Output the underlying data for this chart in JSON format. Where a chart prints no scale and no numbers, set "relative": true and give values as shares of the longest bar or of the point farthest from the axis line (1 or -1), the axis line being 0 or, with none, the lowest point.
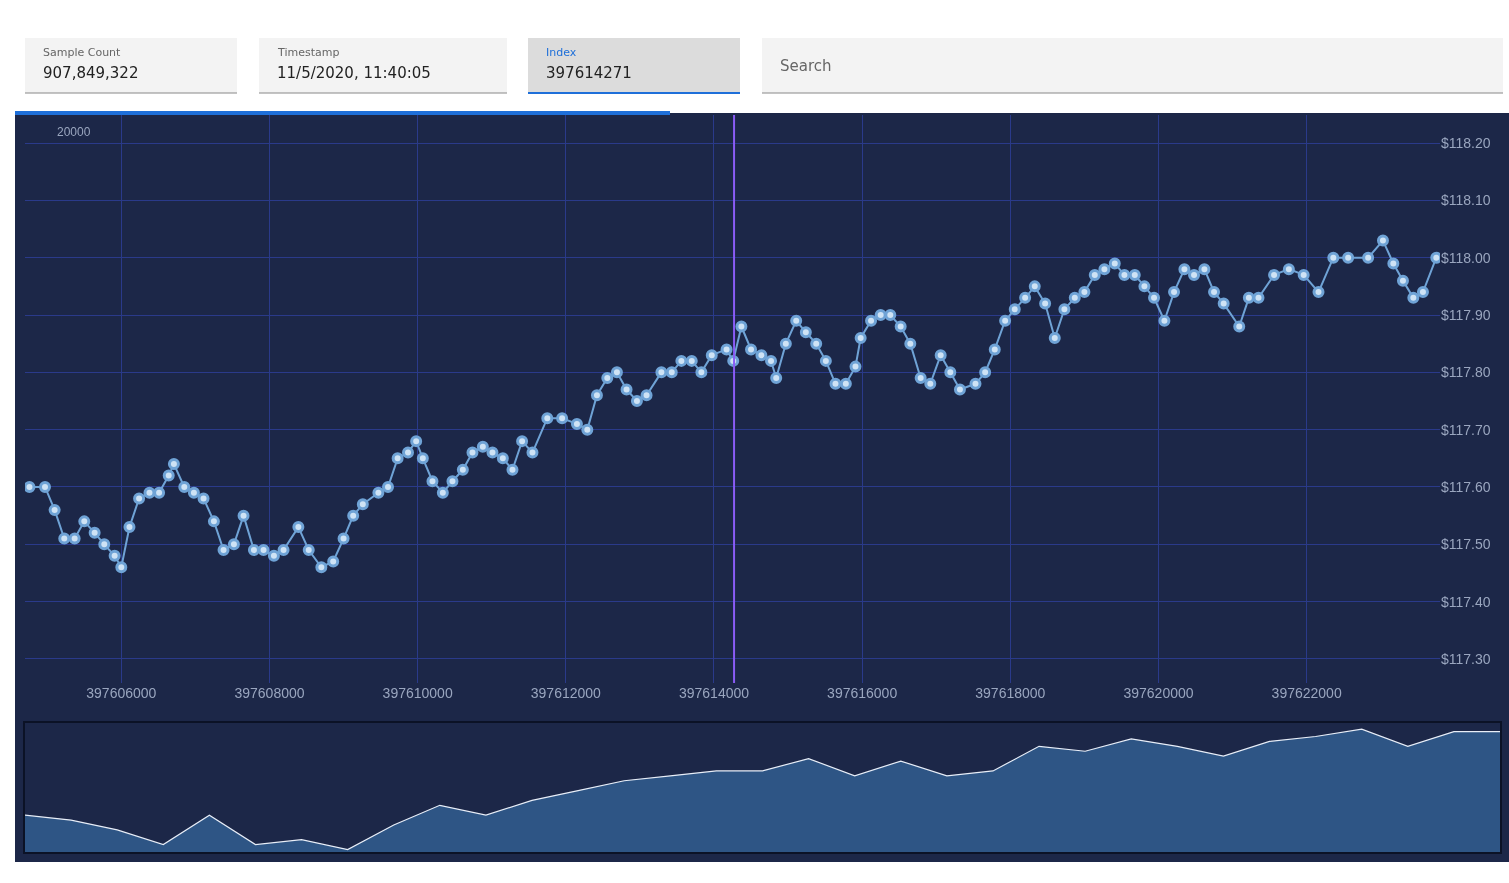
{
  "chart_data": [
    {
      "type": "line",
      "annotations": [
        "Sample Count",
        "907,849,322",
        "Timestamp",
        "11/5/2020, 11:40:05",
        "Index",
        "397614271",
        "Search",
        "20000"
      ],
      "x": [
        397604760,
        397604970,
        397605100,
        397605230,
        397605370,
        397605500,
        397605640,
        397605770,
        397605910,
        397606000,
        397606110,
        397606240,
        397606380,
        397606510,
        397606640,
        397606710,
        397606850,
        397606980,
        397607110,
        397607250,
        397607380,
        397607520,
        397607650,
        397607790,
        397607920,
        397608060,
        397608190,
        397608390,
        397608530,
        397608700,
        397608860,
        397609000,
        397609130,
        397609260,
        397609470,
        397609600,
        397609730,
        397609870,
        397609980,
        397610070,
        397610200,
        397610340,
        397610470,
        397610610,
        397610740,
        397610880,
        397611010,
        397611150,
        397611280,
        397611410,
        397611550,
        397611750,
        397611950,
        397612150,
        397612290,
        397612420,
        397612560,
        397612690,
        397612820,
        397612960,
        397613090,
        397613290,
        397613430,
        397613560,
        397613700,
        397613830,
        397613970,
        397614170,
        397614260,
        397614370,
        397614500,
        397614640,
        397614770,
        397614840,
        397614970,
        397615110,
        397615240,
        397615380,
        397615510,
        397615640,
        397615780,
        397615910,
        397615980,
        397616120,
        397616250,
        397616380,
        397616520,
        397616650,
        397616790,
        397616920,
        397617060,
        397617190,
        397617320,
        397617530,
        397617660,
        397617790,
        397617930,
        397618060,
        397618200,
        397618330,
        397618470,
        397618600,
        397618730,
        397618870,
        397619000,
        397619140,
        397619270,
        397619410,
        397619540,
        397619680,
        397619810,
        397619940,
        397620080,
        397620210,
        397620350,
        397620480,
        397620620,
        397620750,
        397620880,
        397621090,
        397621220,
        397621350,
        397621560,
        397621760,
        397621960,
        397622160,
        397622360,
        397622560,
        397622830,
        397623030,
        397623170,
        397623300,
        397623440,
        397623570,
        397623750
      ],
      "series": [
        {
          "color": "#6fa3d6",
          "values": [
            117.6,
            117.6,
            117.56,
            117.51,
            117.51,
            117.54,
            117.52,
            117.5,
            117.48,
            117.46,
            117.53,
            117.58,
            117.59,
            117.59,
            117.62,
            117.64,
            117.6,
            117.59,
            117.58,
            117.54,
            117.49,
            117.5,
            117.55,
            117.49,
            117.49,
            117.48,
            117.49,
            117.53,
            117.49,
            117.46,
            117.47,
            117.51,
            117.55,
            117.57,
            117.59,
            117.6,
            117.65,
            117.66,
            117.68,
            117.65,
            117.61,
            117.59,
            117.61,
            117.63,
            117.66,
            117.67,
            117.66,
            117.65,
            117.63,
            117.68,
            117.66,
            117.72,
            117.72,
            117.71,
            117.7,
            117.76,
            117.79,
            117.8,
            117.77,
            117.75,
            117.76,
            117.8,
            117.8,
            117.82,
            117.82,
            117.8,
            117.83,
            117.84,
            117.82,
            117.88,
            117.84,
            117.83,
            117.82,
            117.79,
            117.85,
            117.89,
            117.87,
            117.85,
            117.82,
            117.78,
            117.78,
            117.81,
            117.86,
            117.89,
            117.9,
            117.9,
            117.88,
            117.85,
            117.79,
            117.78,
            117.83,
            117.8,
            117.77,
            117.78,
            117.8,
            117.84,
            117.89,
            117.91,
            117.93,
            117.95,
            117.92,
            117.86,
            117.91,
            117.93,
            117.94,
            117.97,
            117.98,
            117.99,
            117.97,
            117.97,
            117.95,
            117.93,
            117.89,
            117.94,
            117.98,
            117.97,
            117.98,
            117.94,
            117.92,
            117.88,
            117.93,
            117.93,
            117.97,
            117.98,
            117.97,
            117.94,
            118.0,
            118.0,
            118.0,
            118.03,
            117.99,
            117.96,
            117.93,
            117.94,
            118.0
          ]
        }
      ],
      "xlim": [
        397604700,
        397623800
      ],
      "xticks": [
        397606000,
        397608000,
        397610000,
        397612000,
        397614000,
        397616000,
        397618000,
        397620000,
        397622000
      ],
      "ylim": [
        117.258,
        118.249
      ],
      "yticks": [
        {
          "value": 117.3,
          "label": "$117.30"
        },
        {
          "value": 117.4,
          "label": "$117.40"
        },
        {
          "value": 117.5,
          "label": "$117.50"
        },
        {
          "value": 117.6,
          "label": "$117.60"
        },
        {
          "value": 117.7,
          "label": "$117.70"
        },
        {
          "value": 117.8,
          "label": "$117.80"
        },
        {
          "value": 117.9,
          "label": "$117.90"
        },
        {
          "value": 118.0,
          "label": "$118.00"
        },
        {
          "value": 118.1,
          "label": "$118.10"
        },
        {
          "value": 118.2,
          "label": "$118.20"
        }
      ],
      "ref_lines": [
        {
          "axis": "x",
          "value": 397614271,
          "color": "#8a5cf6"
        }
      ],
      "grid": true,
      "marker": "circle",
      "line_style": "solid"
    },
    {
      "type": "area",
      "relative": true,
      "categories": [
        null,
        null,
        null,
        null,
        null,
        null,
        null,
        null,
        null,
        null,
        null,
        null,
        null,
        null,
        null,
        null,
        null,
        null,
        null,
        null,
        null,
        null,
        null,
        null,
        null,
        null,
        null,
        null,
        null,
        null,
        null,
        null,
        null
      ],
      "series": [
        {
          "color": "#2e5585",
          "values": [
            0.3,
            0.26,
            0.18,
            0.06,
            0.3,
            0.06,
            0.1,
            0.02,
            0.22,
            0.38,
            0.3,
            0.42,
            0.5,
            0.58,
            0.62,
            0.66,
            0.66,
            0.76,
            0.62,
            0.74,
            0.62,
            0.66,
            0.86,
            0.82,
            0.92,
            0.86,
            0.78,
            0.9,
            0.94,
            1,
            0.86,
            0.98,
            0.98
          ]
        }
      ]
    }
  ]
}
